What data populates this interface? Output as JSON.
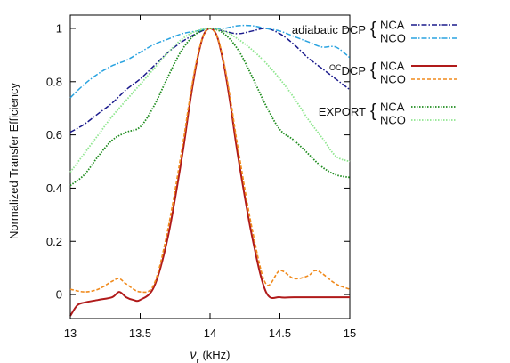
{
  "chart_data": {
    "type": "line",
    "xlabel_main": "ν",
    "xlabel_sub": "r",
    "xlabel_unit": " (kHz)",
    "ylabel": "Normalized Transfer Efficiency",
    "xlim": [
      13,
      15
    ],
    "ylim": [
      -0.09,
      1.05
    ],
    "xticks": [
      13,
      13.5,
      14,
      14.5,
      15
    ],
    "xtick_labels": [
      "13",
      "13.5",
      "14",
      "14.5",
      "15"
    ],
    "yticks": [
      0,
      0.2,
      0.4,
      0.6,
      0.8,
      1
    ],
    "ytick_labels": [
      "0",
      "0.2",
      "0.4",
      "0.6",
      "0.8",
      "1"
    ],
    "grid": false,
    "legend_placement": "right",
    "legend_groups": [
      {
        "group_label": "adiabatic DCP",
        "group_label_prefix": "",
        "labels": [
          "NCA",
          "NCO"
        ]
      },
      {
        "group_label": "DCP",
        "group_label_prefix": "OC",
        "labels": [
          "NCA",
          "NCO"
        ]
      },
      {
        "group_label": "EXPORT",
        "group_label_prefix": "",
        "labels": [
          "NCA",
          "NCO"
        ]
      }
    ],
    "series": [
      {
        "name": "NCA",
        "group": "adiabatic DCP",
        "color": "#1a1a8c",
        "dash": "6,2,1.5,2",
        "width": 1.5,
        "x": [
          13,
          13.1,
          13.2,
          13.3,
          13.4,
          13.5,
          13.6,
          13.7,
          13.8,
          13.9,
          14,
          14.1,
          14.2,
          14.3,
          14.4,
          14.5,
          14.6,
          14.7,
          14.8,
          14.9,
          15
        ],
        "y": [
          0.61,
          0.64,
          0.68,
          0.72,
          0.77,
          0.81,
          0.86,
          0.91,
          0.95,
          0.98,
          1.0,
          0.99,
          0.98,
          0.99,
          1.0,
          0.98,
          0.94,
          0.89,
          0.85,
          0.81,
          0.77
        ]
      },
      {
        "name": "NCO",
        "group": "adiabatic DCP",
        "color": "#2aa3e0",
        "dash": "6,2,1.5,2",
        "width": 1.5,
        "x": [
          13,
          13.1,
          13.2,
          13.3,
          13.4,
          13.5,
          13.6,
          13.7,
          13.8,
          13.9,
          14,
          14.1,
          14.2,
          14.3,
          14.4,
          14.5,
          14.6,
          14.7,
          14.8,
          14.9,
          15
        ],
        "y": [
          0.74,
          0.79,
          0.83,
          0.86,
          0.88,
          0.91,
          0.94,
          0.96,
          0.98,
          0.99,
          1.0,
          1.0,
          1.01,
          1.01,
          1.0,
          0.99,
          0.97,
          0.95,
          0.93,
          0.93,
          0.89
        ]
      },
      {
        "name": "NCA",
        "group": "DCP",
        "color": "#b01a1a",
        "dash": "",
        "width": 2,
        "x": [
          13,
          13.05,
          13.1,
          13.2,
          13.3,
          13.35,
          13.4,
          13.45,
          13.5,
          13.6,
          13.7,
          13.8,
          13.85,
          13.9,
          13.95,
          14,
          14.05,
          14.1,
          14.15,
          14.2,
          14.3,
          14.4,
          14.5,
          14.6,
          14.7,
          14.8,
          14.9,
          15
        ],
        "y": [
          -0.08,
          -0.04,
          -0.03,
          -0.02,
          -0.01,
          0.01,
          -0.01,
          -0.02,
          -0.02,
          0.03,
          0.22,
          0.52,
          0.7,
          0.86,
          0.97,
          1.0,
          0.97,
          0.86,
          0.7,
          0.52,
          0.22,
          0.01,
          -0.01,
          -0.01,
          -0.01,
          -0.01,
          -0.01,
          -0.01
        ]
      },
      {
        "name": "NCO",
        "group": "DCP",
        "color": "#f08a1c",
        "dash": "4,2",
        "width": 1.6,
        "x": [
          13,
          13.1,
          13.2,
          13.3,
          13.35,
          13.4,
          13.5,
          13.6,
          13.7,
          13.8,
          13.85,
          13.9,
          13.95,
          14,
          14.05,
          14.1,
          14.15,
          14.2,
          14.3,
          14.4,
          14.5,
          14.6,
          14.7,
          14.75,
          14.8,
          14.9,
          15
        ],
        "y": [
          0.02,
          0.01,
          0.02,
          0.05,
          0.06,
          0.04,
          0.01,
          0.04,
          0.25,
          0.55,
          0.72,
          0.87,
          0.97,
          1.0,
          0.97,
          0.87,
          0.72,
          0.55,
          0.25,
          0.04,
          0.09,
          0.06,
          0.07,
          0.09,
          0.08,
          0.04,
          0.02
        ]
      },
      {
        "name": "NCA",
        "group": "EXPORT",
        "color": "#1e8c1e",
        "dash": "1.5,1.5",
        "width": 1.8,
        "x": [
          13,
          13.1,
          13.2,
          13.3,
          13.4,
          13.5,
          13.6,
          13.7,
          13.8,
          13.9,
          14,
          14.1,
          14.2,
          14.3,
          14.4,
          14.5,
          14.6,
          14.7,
          14.8,
          14.9,
          15
        ],
        "y": [
          0.41,
          0.45,
          0.52,
          0.58,
          0.61,
          0.63,
          0.71,
          0.82,
          0.92,
          0.98,
          1.0,
          0.98,
          0.92,
          0.82,
          0.71,
          0.62,
          0.58,
          0.53,
          0.48,
          0.45,
          0.44
        ]
      },
      {
        "name": "NCO",
        "group": "EXPORT",
        "color": "#8ee68e",
        "dash": "1.5,1.5",
        "width": 1.8,
        "x": [
          13,
          13.1,
          13.2,
          13.3,
          13.4,
          13.5,
          13.6,
          13.7,
          13.8,
          13.9,
          14,
          14.1,
          14.2,
          14.3,
          14.4,
          14.5,
          14.6,
          14.7,
          14.8,
          14.9,
          15
        ],
        "y": [
          0.46,
          0.53,
          0.6,
          0.67,
          0.73,
          0.79,
          0.85,
          0.91,
          0.96,
          0.99,
          1.0,
          0.99,
          0.96,
          0.92,
          0.87,
          0.81,
          0.74,
          0.66,
          0.59,
          0.52,
          0.5
        ]
      }
    ]
  }
}
